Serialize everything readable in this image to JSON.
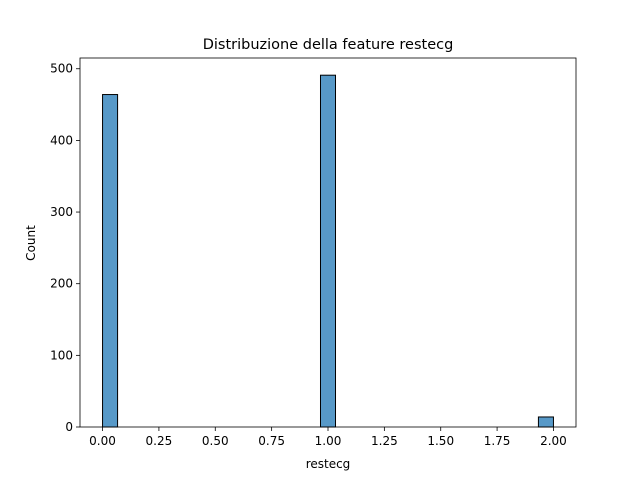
{
  "chart_data": {
    "type": "bar",
    "title": "Distribuzione della feature restecg",
    "xlabel": "restecg",
    "ylabel": "Count",
    "xlim": [
      -0.1,
      2.1
    ],
    "ylim": [
      0,
      515
    ],
    "xticks": [
      0.0,
      0.25,
      0.5,
      0.75,
      1.0,
      1.25,
      1.5,
      1.75,
      2.0
    ],
    "xtick_labels": [
      "0.00",
      "0.25",
      "0.50",
      "0.75",
      "1.00",
      "1.25",
      "1.50",
      "1.75",
      "2.00"
    ],
    "yticks": [
      0,
      100,
      200,
      300,
      400,
      500
    ],
    "ytick_labels": [
      "0",
      "100",
      "200",
      "300",
      "400",
      "500"
    ],
    "bins": [
      {
        "x0": 0.0,
        "x1": 0.0667,
        "count": 464
      },
      {
        "x0": 0.9667,
        "x1": 1.0333,
        "count": 491
      },
      {
        "x0": 1.9333,
        "x1": 2.0,
        "count": 14
      }
    ],
    "bar_color": "#5799c8",
    "bar_edge_color": "#000000",
    "grid": false
  }
}
